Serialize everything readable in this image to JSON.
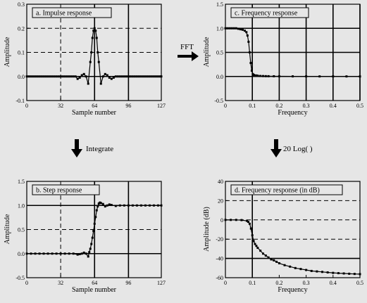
{
  "arrows": {
    "fft": "FFT",
    "integrate": "Integrate",
    "log": "20 Log(   )"
  },
  "chart_data": [
    {
      "id": "a",
      "type": "line",
      "title": "a.  Impulse response",
      "xlabel": "Sample number",
      "ylabel": "Amplitude",
      "xlim": [
        0,
        127
      ],
      "ylim": [
        -0.1,
        0.3
      ],
      "xticks": [
        0,
        32,
        64,
        96,
        127
      ],
      "yticks": [
        -0.1,
        0.0,
        0.1,
        0.2,
        0.3
      ],
      "ytick_labels": [
        "-0.1",
        "0.0",
        "0.1",
        "0.2",
        "0.3"
      ],
      "solid_v": [
        64,
        96
      ],
      "solid_h": [
        0
      ],
      "dashed_h": [
        0.1,
        0.2
      ],
      "dashed_v": [
        32
      ],
      "markers": true,
      "series": [
        {
          "x": [
            0,
            2,
            4,
            6,
            8,
            10,
            12,
            14,
            16,
            18,
            20,
            22,
            24,
            26,
            28,
            30,
            32,
            34,
            36,
            38,
            40,
            42,
            44,
            46,
            48,
            50,
            52,
            54,
            56,
            58,
            60,
            61,
            62,
            63,
            64,
            65,
            66,
            67,
            68,
            70,
            72,
            74,
            76,
            78,
            80,
            82,
            84,
            86,
            88,
            90,
            92,
            94,
            96,
            98,
            100,
            102,
            104,
            106,
            108,
            110,
            112,
            114,
            116,
            118,
            120,
            122,
            124,
            126,
            127
          ],
          "values": [
            0,
            0,
            0,
            0,
            0,
            0,
            0,
            0,
            0,
            0,
            0,
            0,
            0,
            0,
            0,
            0,
            0,
            0,
            0,
            0,
            0,
            0,
            0,
            0,
            -0.01,
            -0.005,
            0.005,
            0.01,
            0.0,
            -0.03,
            0.06,
            0.1,
            0.16,
            0.19,
            0.2,
            0.19,
            0.16,
            0.1,
            0.06,
            -0.03,
            0.0,
            0.01,
            0.005,
            -0.005,
            -0.01,
            -0.005,
            0,
            0,
            0,
            0,
            0,
            0,
            0,
            0,
            0,
            0,
            0,
            0,
            0,
            0,
            0,
            0,
            0,
            0,
            0,
            0,
            0,
            0,
            0
          ]
        }
      ]
    },
    {
      "id": "b",
      "type": "line",
      "title": "b.  Step response",
      "xlabel": "Sample number",
      "ylabel": "Amplitude",
      "xlim": [
        0,
        127
      ],
      "ylim": [
        -0.5,
        1.5
      ],
      "xticks": [
        0,
        32,
        64,
        96,
        127
      ],
      "yticks": [
        -0.5,
        0.0,
        0.5,
        1.0,
        1.5
      ],
      "ytick_labels": [
        "-0.5",
        "0.0",
        "0.5",
        "1.0",
        "1.5"
      ],
      "solid_v": [
        64,
        96
      ],
      "solid_h": [
        0,
        1.0
      ],
      "dashed_h": [
        0.5
      ],
      "dashed_v": [
        32
      ],
      "markers": true,
      "series": [
        {
          "x": [
            0,
            4,
            8,
            12,
            16,
            20,
            24,
            28,
            32,
            36,
            40,
            44,
            48,
            50,
            52,
            54,
            56,
            58,
            59,
            60,
            61,
            62,
            63,
            64,
            65,
            66,
            67,
            68,
            69,
            70,
            72,
            74,
            76,
            78,
            80,
            84,
            88,
            92,
            96,
            100,
            104,
            108,
            112,
            116,
            120,
            124,
            127
          ],
          "values": [
            0,
            0,
            0,
            0,
            0,
            0,
            0,
            0,
            0,
            0,
            0,
            0,
            -0.02,
            -0.01,
            0.0,
            0.02,
            0.0,
            -0.06,
            0.03,
            0.1,
            0.2,
            0.33,
            0.47,
            0.62,
            0.76,
            0.9,
            0.98,
            1.04,
            1.06,
            1.05,
            1.03,
            0.98,
            1.0,
            1.02,
            1.01,
            0.99,
            1.0,
            1.0,
            1.0,
            1.0,
            1.0,
            1.0,
            1.0,
            1.0,
            1.0,
            1.0,
            1.0
          ]
        }
      ]
    },
    {
      "id": "c",
      "type": "line",
      "title": "c.  Frequency response",
      "xlabel": "Frequency",
      "ylabel": "Amplitude",
      "xlim": [
        0,
        0.5
      ],
      "ylim": [
        -0.5,
        1.5
      ],
      "xticks": [
        0,
        0.1,
        0.2,
        0.3,
        0.4,
        0.5
      ],
      "xtick_labels": [
        "0",
        "0.1",
        "0.2",
        "0.3",
        "0.4",
        "0.5"
      ],
      "yticks": [
        -0.5,
        0.0,
        0.5,
        1.0,
        1.5
      ],
      "ytick_labels": [
        "-0.5",
        "0.0",
        "0.5",
        "1.0",
        "1.5"
      ],
      "solid_v": [
        0.1,
        0.2,
        0.3,
        0.4,
        0.5
      ],
      "solid_h": [
        0,
        0.5,
        1.0
      ],
      "dashed_h": [],
      "dashed_v": [],
      "markers": true,
      "series": [
        {
          "x": [
            0,
            0.008,
            0.016,
            0.024,
            0.032,
            0.04,
            0.048,
            0.056,
            0.064,
            0.072,
            0.078,
            0.082,
            0.086,
            0.09,
            0.094,
            0.098,
            0.102,
            0.106,
            0.11,
            0.115,
            0.12,
            0.13,
            0.14,
            0.15,
            0.16,
            0.18,
            0.2,
            0.25,
            0.3,
            0.35,
            0.4,
            0.45,
            0.5
          ],
          "values": [
            1.0,
            1.0,
            1.0,
            1.0,
            1.0,
            1.0,
            0.99,
            0.98,
            0.97,
            0.95,
            0.92,
            0.85,
            0.72,
            0.5,
            0.28,
            0.12,
            0.05,
            0.03,
            0.02,
            0.02,
            0.015,
            0.01,
            0.008,
            0.006,
            0.005,
            0.004,
            0.003,
            0.002,
            0.002,
            0.001,
            0.001,
            0.001,
            0.0
          ]
        }
      ]
    },
    {
      "id": "d",
      "type": "line",
      "title": "d.  Frequency response (in dB)",
      "xlabel": "Frequency",
      "ylabel": "Amplitude (dB)",
      "xlim": [
        0,
        0.5
      ],
      "ylim": [
        -60,
        40
      ],
      "xticks": [
        0,
        0.1,
        0.2,
        0.3,
        0.4,
        0.5
      ],
      "xtick_labels": [
        "0",
        "0.1",
        "0.2",
        "0.3",
        "0.4",
        "0.5"
      ],
      "yticks": [
        -60,
        -40,
        -20,
        0,
        20,
        40
      ],
      "ytick_labels": [
        "-60",
        "-40",
        "-20",
        "0",
        "20",
        "40"
      ],
      "solid_v": [
        0.1
      ],
      "solid_h": [
        -40
      ],
      "dashed_h": [
        -20,
        0,
        20
      ],
      "dashed_v": [],
      "markers": true,
      "series": [
        {
          "x": [
            0,
            0.02,
            0.04,
            0.06,
            0.08,
            0.085,
            0.09,
            0.095,
            0.1,
            0.105,
            0.11,
            0.115,
            0.12,
            0.13,
            0.14,
            0.15,
            0.16,
            0.17,
            0.18,
            0.19,
            0.2,
            0.22,
            0.24,
            0.26,
            0.28,
            0.3,
            0.32,
            0.34,
            0.36,
            0.38,
            0.4,
            0.42,
            0.44,
            0.46,
            0.48,
            0.5
          ],
          "values": [
            0,
            0,
            0,
            -0.2,
            -1,
            -2,
            -4,
            -9,
            -16,
            -22,
            -25,
            -27,
            -29,
            -32,
            -35,
            -37,
            -39,
            -41,
            -42,
            -43.5,
            -45,
            -47,
            -48.5,
            -50,
            -51,
            -52,
            -53,
            -53.5,
            -54,
            -54.5,
            -55,
            -55.3,
            -55.6,
            -55.9,
            -56.1,
            -56.3
          ]
        }
      ]
    }
  ]
}
